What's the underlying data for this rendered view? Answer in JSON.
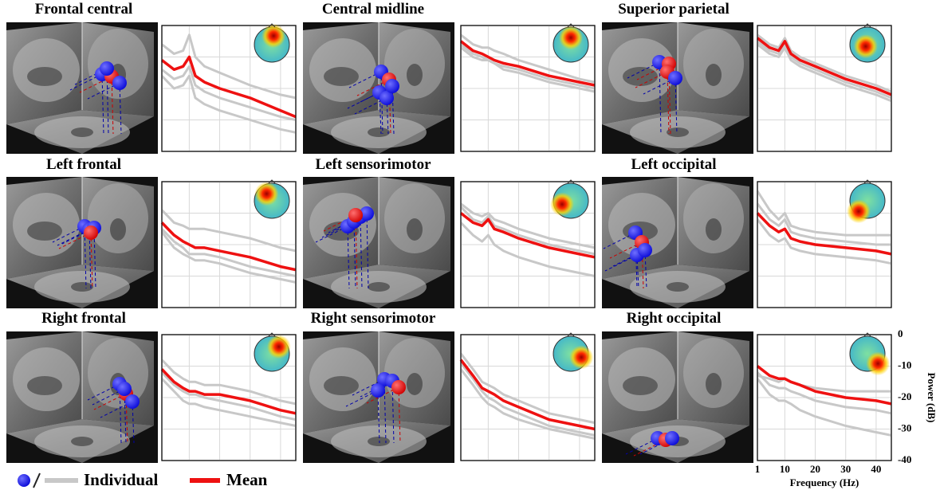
{
  "chart_data": [
    {
      "type": "line",
      "title": "Frontal central",
      "x": [
        1,
        5,
        8,
        10,
        12,
        15,
        20,
        30,
        40,
        45
      ],
      "xlim": [
        1,
        45
      ],
      "ylim": [
        -40,
        0
      ],
      "xticks": [
        1,
        10,
        20,
        30,
        40
      ],
      "yticks": [
        0,
        -10,
        -20,
        -30,
        -40
      ],
      "mean": [
        -11,
        -14,
        -13,
        -10,
        -16,
        -18,
        -20,
        -23,
        -27,
        -29
      ],
      "individuals": [
        [
          -6,
          -9,
          -8,
          -3,
          -10,
          -13,
          -15,
          -19,
          -22,
          -23
        ],
        [
          -14,
          -17,
          -16,
          -13,
          -19,
          -21,
          -23,
          -26,
          -29,
          -30
        ],
        [
          -16,
          -20,
          -19,
          -16,
          -23,
          -25,
          -27,
          -30,
          -33,
          -34
        ]
      ]
    },
    {
      "type": "line",
      "title": "Central midline",
      "x": [
        1,
        5,
        8,
        10,
        12,
        15,
        20,
        30,
        40,
        45
      ],
      "xlim": [
        1,
        45
      ],
      "ylim": [
        -40,
        0
      ],
      "xticks": [
        1,
        10,
        20,
        30,
        40
      ],
      "yticks": [
        0,
        -10,
        -20,
        -30,
        -40
      ],
      "mean": [
        -5,
        -8,
        -9,
        -10,
        -11,
        -12,
        -13,
        -16,
        -18,
        -19
      ],
      "individuals": [
        [
          -3,
          -6,
          -7,
          -7,
          -8,
          -9,
          -11,
          -14,
          -17,
          -18
        ],
        [
          -6,
          -9,
          -10,
          -11,
          -12,
          -13,
          -14,
          -17,
          -19,
          -20
        ],
        [
          -7,
          -10,
          -11,
          -11,
          -12,
          -14,
          -15,
          -18,
          -20,
          -21
        ]
      ]
    },
    {
      "type": "line",
      "title": "Superior parietal",
      "x": [
        1,
        5,
        8,
        10,
        12,
        15,
        20,
        30,
        40,
        45
      ],
      "xlim": [
        1,
        45
      ],
      "ylim": [
        -40,
        0
      ],
      "xticks": [
        1,
        10,
        20,
        30,
        40
      ],
      "yticks": [
        0,
        -10,
        -20,
        -30,
        -40
      ],
      "mean": [
        -4,
        -7,
        -8,
        -5,
        -9,
        -11,
        -13,
        -17,
        -20,
        -22
      ],
      "individuals": [
        [
          -3,
          -6,
          -7,
          -4,
          -8,
          -10,
          -12,
          -16,
          -19,
          -21
        ],
        [
          -5,
          -8,
          -9,
          -6,
          -10,
          -12,
          -14,
          -18,
          -21,
          -23
        ],
        [
          -6,
          -9,
          -10,
          -7,
          -11,
          -13,
          -15,
          -19,
          -22,
          -24
        ]
      ]
    },
    {
      "type": "line",
      "title": "Left frontal",
      "x": [
        1,
        5,
        8,
        10,
        12,
        15,
        20,
        30,
        40,
        45
      ],
      "xlim": [
        1,
        45
      ],
      "ylim": [
        -40,
        0
      ],
      "xticks": [
        1,
        10,
        20,
        30,
        40
      ],
      "yticks": [
        0,
        -10,
        -20,
        -30,
        -40
      ],
      "mean": [
        -13,
        -17,
        -19,
        -20,
        -21,
        -21,
        -22,
        -24,
        -27,
        -28
      ],
      "individuals": [
        [
          -9,
          -13,
          -14,
          -15,
          -15,
          -15,
          -16,
          -18,
          -21,
          -22
        ],
        [
          -15,
          -19,
          -21,
          -23,
          -23,
          -23,
          -24,
          -27,
          -29,
          -30
        ],
        [
          -16,
          -21,
          -23,
          -24,
          -25,
          -25,
          -26,
          -29,
          -31,
          -32
        ]
      ]
    },
    {
      "type": "line",
      "title": "Left sensorimotor",
      "x": [
        1,
        5,
        8,
        10,
        12,
        15,
        20,
        30,
        40,
        45
      ],
      "xlim": [
        1,
        45
      ],
      "ylim": [
        -40,
        0
      ],
      "xticks": [
        1,
        10,
        20,
        30,
        40
      ],
      "yticks": [
        0,
        -10,
        -20,
        -30,
        -40
      ],
      "mean": [
        -10,
        -13,
        -14,
        -12,
        -15,
        -16,
        -18,
        -21,
        -23,
        -24
      ],
      "individuals": [
        [
          -7,
          -10,
          -11,
          -10,
          -12,
          -13,
          -15,
          -18,
          -20,
          -21
        ],
        [
          -8,
          -12,
          -13,
          -11,
          -14,
          -15,
          -17,
          -20,
          -22,
          -23
        ],
        [
          -13,
          -17,
          -19,
          -17,
          -20,
          -22,
          -24,
          -27,
          -29,
          -30
        ]
      ]
    },
    {
      "type": "line",
      "title": "Left occipital",
      "x": [
        1,
        5,
        8,
        10,
        12,
        15,
        20,
        30,
        40,
        45
      ],
      "xlim": [
        1,
        45
      ],
      "ylim": [
        -40,
        0
      ],
      "xticks": [
        1,
        10,
        20,
        30,
        40
      ],
      "yticks": [
        0,
        -10,
        -20,
        -30,
        -40
      ],
      "mean": [
        -10,
        -14,
        -16,
        -15,
        -18,
        -19,
        -20,
        -21,
        -22,
        -23
      ],
      "individuals": [
        [
          -3,
          -9,
          -12,
          -10,
          -14,
          -15,
          -16,
          -17,
          -17,
          -17
        ],
        [
          -7,
          -12,
          -14,
          -12,
          -16,
          -17,
          -18,
          -19,
          -20,
          -20
        ],
        [
          -12,
          -17,
          -19,
          -18,
          -21,
          -22,
          -23,
          -24,
          -25,
          -26
        ]
      ]
    },
    {
      "type": "line",
      "title": "Right frontal",
      "x": [
        1,
        5,
        8,
        10,
        12,
        15,
        20,
        30,
        40,
        45
      ],
      "xlim": [
        1,
        45
      ],
      "ylim": [
        -40,
        0
      ],
      "xticks": [
        1,
        10,
        20,
        30,
        40
      ],
      "yticks": [
        0,
        -10,
        -20,
        -30,
        -40
      ],
      "mean": [
        -11,
        -15,
        -17,
        -18,
        -18,
        -19,
        -19,
        -21,
        -24,
        -25
      ],
      "individuals": [
        [
          -8,
          -12,
          -14,
          -15,
          -15,
          -16,
          -16,
          -18,
          -21,
          -22
        ],
        [
          -12,
          -16,
          -18,
          -19,
          -19,
          -20,
          -21,
          -23,
          -26,
          -27
        ],
        [
          -14,
          -18,
          -21,
          -22,
          -22,
          -23,
          -24,
          -26,
          -28,
          -29
        ]
      ]
    },
    {
      "type": "line",
      "title": "Right sensorimotor",
      "x": [
        1,
        5,
        8,
        10,
        12,
        15,
        20,
        30,
        40,
        45
      ],
      "xlim": [
        1,
        45
      ],
      "ylim": [
        -40,
        0
      ],
      "xticks": [
        1,
        10,
        20,
        30,
        40
      ],
      "yticks": [
        0,
        -10,
        -20,
        -30,
        -40
      ],
      "mean": [
        -8,
        -13,
        -17,
        -18,
        -19,
        -21,
        -23,
        -27,
        -29,
        -30
      ],
      "individuals": [
        [
          -6,
          -11,
          -15,
          -16,
          -17,
          -19,
          -21,
          -25,
          -27,
          -28
        ],
        [
          -9,
          -14,
          -18,
          -20,
          -21,
          -23,
          -25,
          -29,
          -31,
          -32
        ],
        [
          -11,
          -16,
          -20,
          -22,
          -23,
          -25,
          -27,
          -30,
          -32,
          -33
        ]
      ]
    },
    {
      "type": "line",
      "title": "Right occipital",
      "x": [
        1,
        5,
        8,
        10,
        12,
        15,
        20,
        30,
        40,
        45
      ],
      "xlim": [
        1,
        45
      ],
      "ylim": [
        -40,
        0
      ],
      "xticks": [
        1,
        10,
        20,
        30,
        40
      ],
      "yticks": [
        0,
        -10,
        -20,
        -30,
        -40
      ],
      "xlabel": "Frequency (Hz)",
      "ylabel": "Power (dB)",
      "mean": [
        -10,
        -13,
        -14,
        -14,
        -15,
        -16,
        -18,
        -20,
        -21,
        -22
      ],
      "individuals": [
        [
          -13,
          -14,
          -15,
          -14,
          -15,
          -16,
          -17,
          -18,
          -18,
          -18
        ],
        [
          -12,
          -16,
          -17,
          -17,
          -18,
          -19,
          -21,
          -23,
          -24,
          -25
        ],
        [
          -14,
          -19,
          -21,
          -21,
          -22,
          -24,
          -26,
          -29,
          -31,
          -32
        ]
      ]
    }
  ],
  "legend": {
    "individual": {
      "label": "Individual",
      "color": "#c8c8c8"
    },
    "mean": {
      "label": "Mean",
      "color": "#ee1111"
    }
  }
}
